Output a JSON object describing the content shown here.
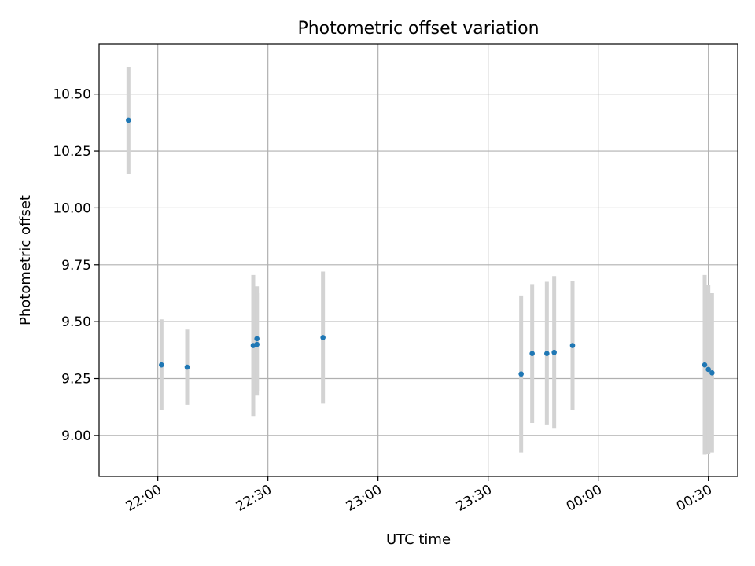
{
  "chart_data": {
    "type": "scatter",
    "title": "Photometric offset variation",
    "xlabel": "UTC time",
    "ylabel": "Photometric offset",
    "grid": true,
    "x_axis": {
      "kind": "time",
      "range": [
        "21:44",
        "00:38"
      ],
      "ticks": [
        "22:00",
        "22:30",
        "23:00",
        "23:30",
        "00:00",
        "00:30"
      ]
    },
    "y_axis": {
      "range": [
        8.82,
        10.72
      ],
      "ticks": [
        "9.00",
        "9.25",
        "9.50",
        "9.75",
        "10.00",
        "10.25",
        "10.50"
      ]
    },
    "colors": {
      "point": "#1f77b4",
      "errorbar": "#d3d3d3",
      "grid": "#b0b0b0"
    },
    "points": [
      {
        "time": "21:52",
        "y": 10.385,
        "yerr": 0.235
      },
      {
        "time": "22:01",
        "y": 9.31,
        "yerr": 0.2
      },
      {
        "time": "22:08",
        "y": 9.3,
        "yerr": 0.165
      },
      {
        "time": "22:26",
        "y": 9.395,
        "yerr": 0.31
      },
      {
        "time": "22:27",
        "y": 9.425,
        "yerr": 0.23
      },
      {
        "time": "22:27",
        "y": 9.4,
        "yerr": 0.225
      },
      {
        "time": "22:45",
        "y": 9.43,
        "yerr": 0.29
      },
      {
        "time": "23:39",
        "y": 9.27,
        "yerr": 0.345
      },
      {
        "time": "23:42",
        "y": 9.36,
        "yerr": 0.305
      },
      {
        "time": "23:46",
        "y": 9.36,
        "yerr": 0.315
      },
      {
        "time": "23:48",
        "y": 9.365,
        "yerr": 0.335
      },
      {
        "time": "23:53",
        "y": 9.395,
        "yerr": 0.285
      },
      {
        "time": "00:29",
        "y": 9.31,
        "yerr": 0.395
      },
      {
        "time": "00:30",
        "y": 9.29,
        "yerr": 0.37
      },
      {
        "time": "00:31",
        "y": 9.275,
        "yerr": 0.35
      }
    ]
  }
}
